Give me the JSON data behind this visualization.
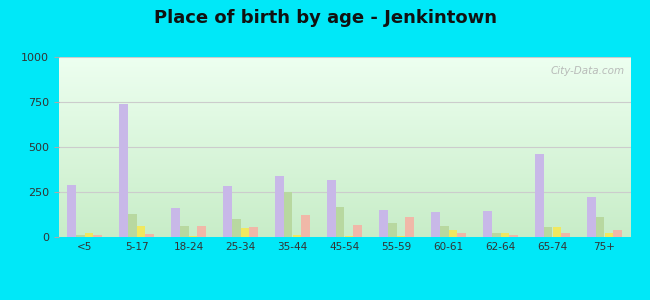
{
  "title": "Place of birth by age - Jenkintown",
  "categories": [
    "<5",
    "5-17",
    "18-24",
    "25-34",
    "35-44",
    "45-54",
    "55-59",
    "60-61",
    "62-64",
    "65-74",
    "75+"
  ],
  "series": {
    "Born in state of residence": [
      290,
      740,
      160,
      285,
      340,
      315,
      150,
      140,
      145,
      460,
      220
    ],
    "Born in other state": [
      10,
      130,
      60,
      100,
      250,
      165,
      80,
      60,
      20,
      55,
      110
    ],
    "Native, outside of US": [
      20,
      60,
      5,
      50,
      10,
      5,
      5,
      40,
      20,
      55,
      20
    ],
    "Foreign-born": [
      10,
      15,
      60,
      55,
      120,
      65,
      110,
      20,
      10,
      20,
      40
    ]
  },
  "colors": {
    "Born in state of residence": "#c8b8e8",
    "Born in other state": "#b8d8a0",
    "Native, outside of US": "#f0e860",
    "Foreign-born": "#f0b8a8"
  },
  "legend_colors": {
    "Born in state of residence": "#d8b8d8",
    "Born in other state": "#d0d8a8",
    "Native, outside of US": "#f0f060",
    "Foreign-born": "#f8c0b0"
  },
  "ylim": [
    0,
    1000
  ],
  "yticks": [
    0,
    250,
    500,
    750,
    1000
  ],
  "bar_width": 0.17,
  "figure_background": "#00e8f8",
  "grid_color": "#dddddd",
  "title_fontsize": 13
}
